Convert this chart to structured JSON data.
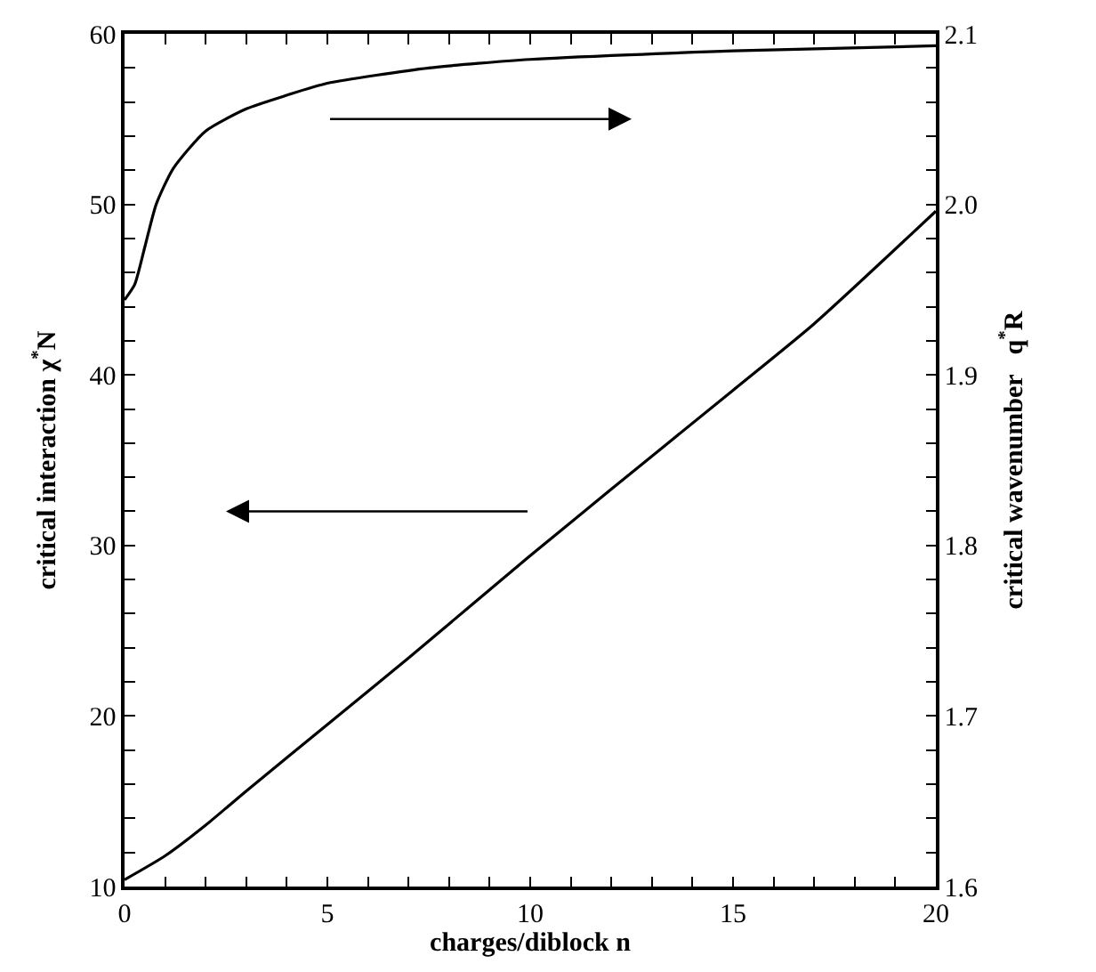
{
  "chart_data": {
    "type": "line",
    "xlabel": "charges/diblock n",
    "ylabel": "critical interaction χ$^{*}$N",
    "y2label": "critical wavenumber   q$^{*}$R",
    "xlim": [
      0,
      20
    ],
    "ylim": [
      10,
      60
    ],
    "y2lim": [
      1.6,
      2.1
    ],
    "xticks": [
      0,
      {
        "value": 1,
        "label": null
      },
      {
        "value": 2,
        "label": null
      },
      {
        "value": 3,
        "label": null
      },
      {
        "value": 4,
        "label": null
      },
      5,
      {
        "value": 6,
        "label": null
      },
      {
        "value": 7,
        "label": null
      },
      {
        "value": 8,
        "label": null
      },
      {
        "value": 9,
        "label": null
      },
      10,
      {
        "value": 11,
        "label": null
      },
      {
        "value": 12,
        "label": null
      },
      {
        "value": 13,
        "label": null
      },
      {
        "value": 14,
        "label": null
      },
      15,
      {
        "value": 16,
        "label": null
      },
      {
        "value": 17,
        "label": null
      },
      {
        "value": 18,
        "label": null
      },
      {
        "value": 19,
        "label": null
      },
      20
    ],
    "yticks": [
      10,
      {
        "value": 12,
        "label": null
      },
      {
        "value": 14,
        "label": null
      },
      {
        "value": 16,
        "label": null
      },
      {
        "value": 18,
        "label": null
      },
      20,
      {
        "value": 22,
        "label": null
      },
      {
        "value": 24,
        "label": null
      },
      {
        "value": 26,
        "label": null
      },
      {
        "value": 28,
        "label": null
      },
      30,
      {
        "value": 32,
        "label": null
      },
      {
        "value": 34,
        "label": null
      },
      {
        "value": 36,
        "label": null
      },
      {
        "value": 38,
        "label": null
      },
      40,
      {
        "value": 42,
        "label": null
      },
      {
        "value": 44,
        "label": null
      },
      {
        "value": 46,
        "label": null
      },
      {
        "value": 48,
        "label": null
      },
      50,
      {
        "value": 52,
        "label": null
      },
      {
        "value": 54,
        "label": null
      },
      {
        "value": 56,
        "label": null
      },
      {
        "value": 58,
        "label": null
      },
      60
    ],
    "y2ticks": [
      {
        "value": 1.6,
        "label": "1.6"
      },
      {
        "value": 1.62,
        "label": null
      },
      {
        "value": 1.64,
        "label": null
      },
      {
        "value": 1.66,
        "label": null
      },
      {
        "value": 1.68,
        "label": null
      },
      {
        "value": 1.7,
        "label": "1.7"
      },
      {
        "value": 1.72,
        "label": null
      },
      {
        "value": 1.74,
        "label": null
      },
      {
        "value": 1.76,
        "label": null
      },
      {
        "value": 1.78,
        "label": null
      },
      {
        "value": 1.8,
        "label": "1.8"
      },
      {
        "value": 1.82,
        "label": null
      },
      {
        "value": 1.84,
        "label": null
      },
      {
        "value": 1.86,
        "label": null
      },
      {
        "value": 1.88,
        "label": null
      },
      {
        "value": 1.9,
        "label": "1.9"
      },
      {
        "value": 1.92,
        "label": null
      },
      {
        "value": 1.94,
        "label": null
      },
      {
        "value": 1.96,
        "label": null
      },
      {
        "value": 1.98,
        "label": null
      },
      {
        "value": 2.0,
        "label": "2.0"
      },
      {
        "value": 2.02,
        "label": null
      },
      {
        "value": 2.04,
        "label": null
      },
      {
        "value": 2.06,
        "label": null
      },
      {
        "value": 2.08,
        "label": null
      },
      {
        "value": 2.1,
        "label": "2.1"
      }
    ],
    "marker": "none",
    "line_style": "solid",
    "series": [
      {
        "color": "#000000",
        "x": [
          0,
          1,
          2,
          3,
          5,
          7,
          10,
          12,
          15,
          17,
          20
        ],
        "values": [
          10.4,
          11.8,
          13.6,
          15.6,
          19.5,
          23.4,
          29.4,
          33.3,
          39.1,
          43.0,
          49.6
        ]
      },
      {
        "color": "#000000",
        "axis": "y2",
        "x": [
          0,
          0.25,
          0.5,
          0.78,
          1.2,
          2,
          3,
          4,
          5,
          7.5,
          10,
          15,
          20
        ],
        "values": [
          1.944,
          1.953,
          1.975,
          2.0,
          2.021,
          2.043,
          2.056,
          2.064,
          2.071,
          2.08,
          2.085,
          2.09,
          2.093
        ]
      }
    ]
  }
}
